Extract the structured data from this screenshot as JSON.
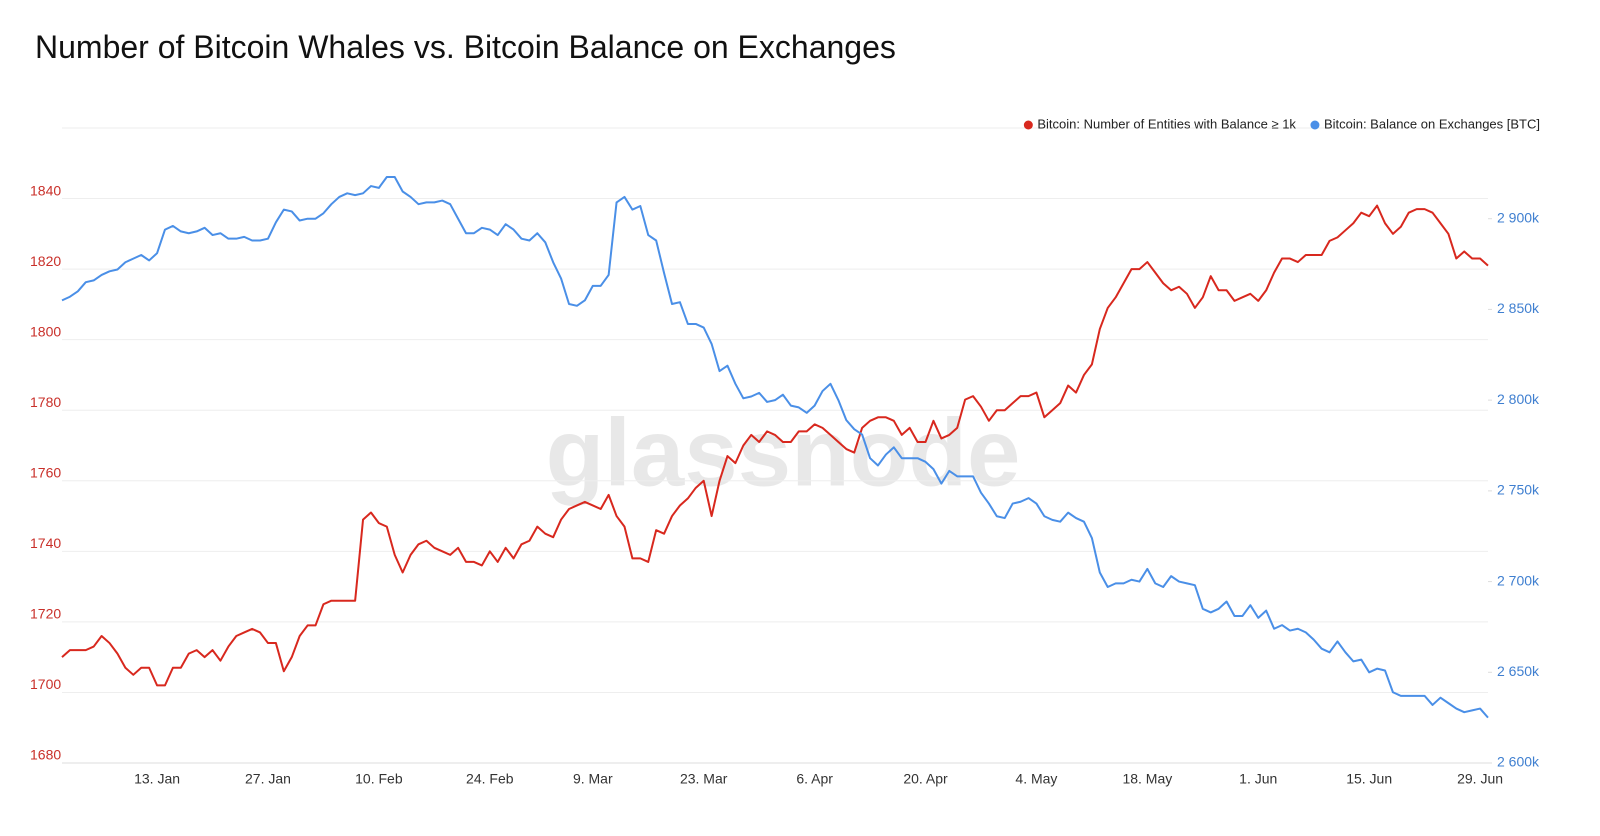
{
  "chart_data": {
    "type": "line",
    "title": "Number of Bitcoin Whales vs. Bitcoin Balance on Exchanges",
    "watermark": "glassnode",
    "legend": "top-right",
    "grid": true,
    "categories": [
      null,
      null,
      null,
      null,
      null,
      null,
      null,
      null,
      null,
      null,
      null,
      null,
      "13. Jan",
      null,
      null,
      null,
      null,
      null,
      null,
      null,
      null,
      null,
      null,
      null,
      null,
      null,
      "27. Jan",
      null,
      null,
      null,
      null,
      null,
      null,
      null,
      null,
      null,
      null,
      null,
      null,
      null,
      "10. Feb",
      null,
      null,
      null,
      null,
      null,
      null,
      null,
      null,
      null,
      null,
      null,
      null,
      null,
      "24. Feb",
      null,
      null,
      null,
      null,
      null,
      null,
      null,
      null,
      null,
      null,
      null,
      null,
      "9. Mar",
      null,
      null,
      null,
      null,
      null,
      null,
      null,
      null,
      null,
      null,
      null,
      null,
      null,
      "23. Mar",
      null,
      null,
      null,
      null,
      null,
      null,
      null,
      null,
      null,
      null,
      null,
      null,
      null,
      "6. Apr",
      null,
      null,
      null,
      null,
      null,
      null,
      null,
      null,
      null,
      null,
      null,
      null,
      null,
      "20. Apr",
      null,
      null,
      null,
      null,
      null,
      null,
      null,
      null,
      null,
      null,
      null,
      null,
      null,
      "4. May",
      null,
      null,
      null,
      null,
      null,
      null,
      null,
      null,
      null,
      null,
      null,
      null,
      null,
      "18. May",
      null,
      null,
      null,
      null,
      null,
      null,
      null,
      null,
      null,
      null,
      null,
      null,
      null,
      "1. Jun",
      null,
      null,
      null,
      null,
      null,
      null,
      null,
      null,
      null,
      null,
      null,
      null,
      null,
      "15. Jun",
      null,
      null,
      null,
      null,
      null,
      null,
      null,
      null,
      null,
      null,
      null,
      null,
      null,
      "29. Jun",
      null
    ],
    "ylim": [
      1680,
      1860
    ],
    "yticks": [
      1680,
      1700,
      1720,
      1740,
      1760,
      1780,
      1800,
      1820,
      1840
    ],
    "y2lim": [
      2600000,
      2950000
    ],
    "y2ticks": [
      {
        "value": 2600000,
        "label": "2 600k"
      },
      {
        "value": 2650000,
        "label": "2 650k"
      },
      {
        "value": 2700000,
        "label": "2 700k"
      },
      {
        "value": 2750000,
        "label": "2 750k"
      },
      {
        "value": 2800000,
        "label": "2 800k"
      },
      {
        "value": 2850000,
        "label": "2 850k"
      },
      {
        "value": 2900000,
        "label": "2 900k"
      }
    ],
    "series": [
      {
        "name": "Bitcoin: Number of Entities with Balance ≥ 1k",
        "color": "#d8281e",
        "axis": "y",
        "values": [
          1710,
          1712,
          1712,
          1712,
          1713,
          1716,
          1714,
          1711,
          1707,
          1705,
          1707,
          1707,
          1702,
          1702,
          1707,
          1707,
          1711,
          1712,
          1710,
          1712,
          1709,
          1713,
          1716,
          1717,
          1718,
          1717,
          1714,
          1714,
          1706,
          1710,
          1716,
          1719,
          1719,
          1725,
          1726,
          1726,
          1726,
          1726,
          1749,
          1751,
          1748,
          1747,
          1739,
          1734,
          1739,
          1742,
          1743,
          1741,
          1740,
          1739,
          1741,
          1737,
          1737,
          1736,
          1740,
          1737,
          1741,
          1738,
          1742,
          1743,
          1747,
          1745,
          1744,
          1749,
          1752,
          1753,
          1754,
          1753,
          1752,
          1756,
          1750,
          1747,
          1738,
          1738,
          1737,
          1746,
          1745,
          1750,
          1753,
          1755,
          1758,
          1760,
          1750,
          1760,
          1767,
          1765,
          1770,
          1773,
          1771,
          1774,
          1773,
          1771,
          1771,
          1774,
          1774,
          1776,
          1775,
          1773,
          1771,
          1769,
          1768,
          1775,
          1777,
          1778,
          1778,
          1777,
          1773,
          1775,
          1771,
          1771,
          1777,
          1772,
          1773,
          1775,
          1783,
          1784,
          1781,
          1777,
          1780,
          1780,
          1782,
          1784,
          1784,
          1785,
          1778,
          1780,
          1782,
          1787,
          1785,
          1790,
          1793,
          1803,
          1809,
          1812,
          1816,
          1820,
          1820,
          1822,
          1819,
          1816,
          1814,
          1815,
          1813,
          1809,
          1812,
          1818,
          1814,
          1814,
          1811,
          1812,
          1813,
          1811,
          1814,
          1819,
          1823,
          1823,
          1822,
          1824,
          1824,
          1824,
          1828,
          1829,
          1831,
          1833,
          1836,
          1835,
          1838,
          1833,
          1830,
          1832,
          1836,
          1837,
          1837,
          1836,
          1833,
          1830,
          1823,
          1825,
          1823,
          1823,
          1821
        ]
      },
      {
        "name": "Bitcoin: Balance on Exchanges [BTC]",
        "color": "#4a8fe7",
        "axis": "y2",
        "values": [
          2855000,
          2857000,
          2860000,
          2865000,
          2866000,
          2869000,
          2871000,
          2872000,
          2876000,
          2878000,
          2880000,
          2877000,
          2881000,
          2894000,
          2896000,
          2893000,
          2892000,
          2893000,
          2895000,
          2891000,
          2892000,
          2889000,
          2889000,
          2890000,
          2888000,
          2888000,
          2889000,
          2898000,
          2905000,
          2904000,
          2899000,
          2900000,
          2900000,
          2903000,
          2908000,
          2912000,
          2914000,
          2913000,
          2914000,
          2918000,
          2917000,
          2923000,
          2923000,
          2915000,
          2912000,
          2908000,
          2909000,
          2909000,
          2910000,
          2908000,
          2900000,
          2892000,
          2892000,
          2895000,
          2894000,
          2891000,
          2897000,
          2894000,
          2889000,
          2888000,
          2892000,
          2887000,
          2876000,
          2867000,
          2853000,
          2852000,
          2855000,
          2863000,
          2863000,
          2869000,
          2909000,
          2912000,
          2905000,
          2907000,
          2891000,
          2888000,
          2870000,
          2853000,
          2854000,
          2842000,
          2842000,
          2840000,
          2831000,
          2816000,
          2819000,
          2809000,
          2801000,
          2802000,
          2804000,
          2799000,
          2800000,
          2803000,
          2797000,
          2796000,
          2793000,
          2797000,
          2805000,
          2809000,
          2800000,
          2789000,
          2784000,
          2781000,
          2768000,
          2764000,
          2770000,
          2774000,
          2768000,
          2768000,
          2768000,
          2766000,
          2762000,
          2754000,
          2761000,
          2758000,
          2758000,
          2758000,
          2749000,
          2743000,
          2736000,
          2735000,
          2743000,
          2744000,
          2746000,
          2743000,
          2736000,
          2734000,
          2733000,
          2738000,
          2735000,
          2733000,
          2724000,
          2705000,
          2697000,
          2699000,
          2699000,
          2701000,
          2700000,
          2707000,
          2699000,
          2697000,
          2703000,
          2700000,
          2699000,
          2698000,
          2685000,
          2683000,
          2685000,
          2689000,
          2681000,
          2681000,
          2687000,
          2680000,
          2684000,
          2674000,
          2676000,
          2673000,
          2674000,
          2672000,
          2668000,
          2663000,
          2661000,
          2667000,
          2661000,
          2656000,
          2657000,
          2650000,
          2652000,
          2651000,
          2639000,
          2637000,
          2637000,
          2637000,
          2637000,
          2632000,
          2636000,
          2633000,
          2630000,
          2628000,
          2629000,
          2630000,
          2625000
        ]
      }
    ]
  }
}
